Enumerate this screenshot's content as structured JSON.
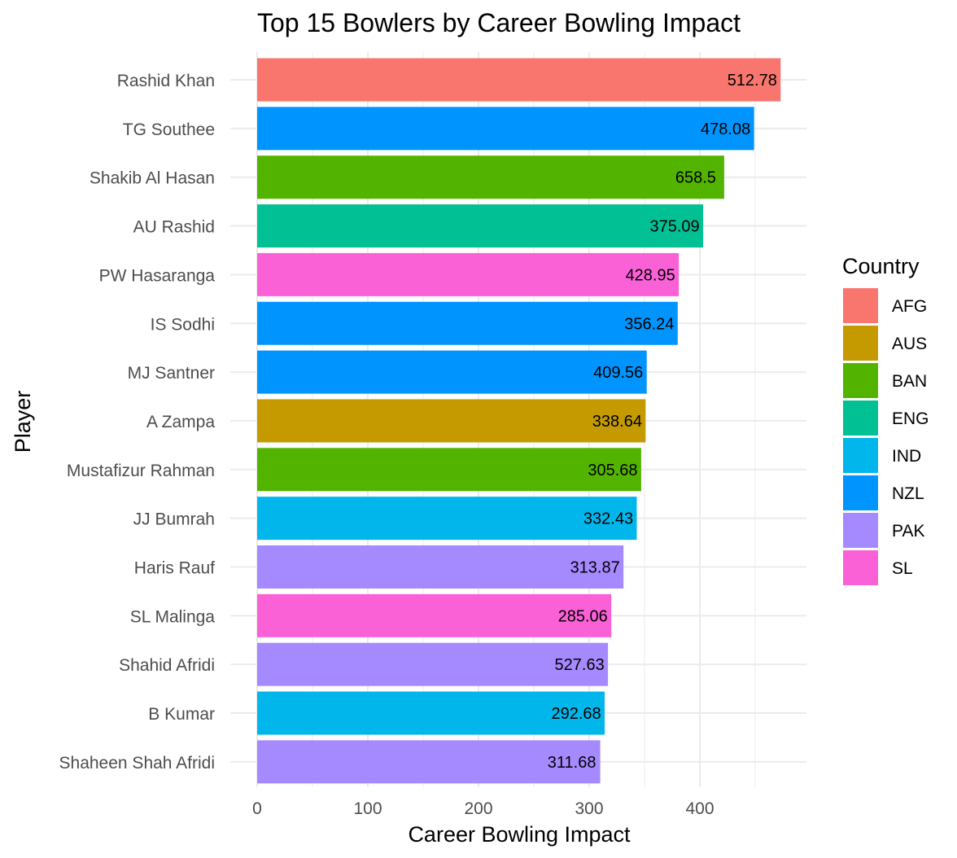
{
  "chart_data": {
    "type": "bar",
    "orientation": "horizontal",
    "title": "Top 15 Bowlers by Career Bowling Impact",
    "xlabel": "Career Bowling Impact",
    "ylabel": "Player",
    "xlim": [
      0,
      497
    ],
    "x_ticks": [
      0,
      100,
      200,
      300,
      400
    ],
    "grid": true,
    "legend_title": "Country",
    "legend_position": "right",
    "colors": {
      "AFG": "#F8766D",
      "AUS": "#C49A00",
      "BAN": "#53B400",
      "ENG": "#00C094",
      "IND": "#00B6EB",
      "NZL": "#0094FF",
      "PAK": "#A58AFF",
      "SL": "#FB61D7"
    },
    "legend": [
      "AFG",
      "AUS",
      "BAN",
      "ENG",
      "IND",
      "NZL",
      "PAK",
      "SL"
    ],
    "bars": [
      {
        "player": "Rashid Khan",
        "country": "AFG",
        "value": 473,
        "label": "512.78"
      },
      {
        "player": "TG Southee",
        "country": "NZL",
        "value": 449,
        "label": "478.08"
      },
      {
        "player": "Shakib Al Hasan",
        "country": "BAN",
        "value": 422,
        "label": "658.5"
      },
      {
        "player": "AU Rashid",
        "country": "ENG",
        "value": 403,
        "label": "375.09"
      },
      {
        "player": "PW Hasaranga",
        "country": "SL",
        "value": 381,
        "label": "428.95"
      },
      {
        "player": "IS Sodhi",
        "country": "NZL",
        "value": 380,
        "label": "356.24"
      },
      {
        "player": "MJ Santner",
        "country": "NZL",
        "value": 352,
        "label": "409.56"
      },
      {
        "player": "A Zampa",
        "country": "AUS",
        "value": 351,
        "label": "338.64"
      },
      {
        "player": "Mustafizur Rahman",
        "country": "BAN",
        "value": 347,
        "label": "305.68"
      },
      {
        "player": "JJ Bumrah",
        "country": "IND",
        "value": 343,
        "label": "332.43"
      },
      {
        "player": "Haris Rauf",
        "country": "PAK",
        "value": 331,
        "label": "313.87"
      },
      {
        "player": "SL Malinga",
        "country": "SL",
        "value": 320,
        "label": "285.06"
      },
      {
        "player": "Shahid Afridi",
        "country": "PAK",
        "value": 317,
        "label": "527.63"
      },
      {
        "player": "B Kumar",
        "country": "IND",
        "value": 314,
        "label": "292.68"
      },
      {
        "player": "Shaheen Shah Afridi",
        "country": "PAK",
        "value": 310,
        "label": "311.68"
      }
    ]
  }
}
